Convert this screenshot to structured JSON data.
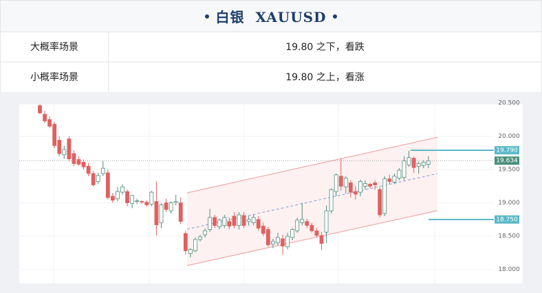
{
  "header": {
    "title": "白银  XAUUSD"
  },
  "table": {
    "rows": [
      [
        "大概率场景",
        "19.80 之下，看跌"
      ],
      [
        "小概率场景",
        "19.80 之上，看涨"
      ]
    ]
  },
  "chart_data": {
    "type": "candlestick",
    "up_color": "#4a8f7c",
    "down_color": "#e06060",
    "ylim": [
      17.79,
      20.48
    ],
    "yticks": [
      {
        "value": 18,
        "label": "18.000"
      },
      {
        "value": 18.5,
        "label": "18.500"
      },
      {
        "value": 19,
        "label": "19.000"
      },
      {
        "value": 19.5,
        "label": "19.500"
      },
      {
        "value": 20,
        "label": "20.000"
      },
      {
        "value": 20.5,
        "label": "20.500"
      }
    ],
    "grid": true,
    "open": [
      20.46,
      20.33,
      20.25,
      20.18,
      19.94,
      19.72,
      19.96,
      19.74,
      19.65,
      19.61,
      19.55,
      19.44,
      19.32,
      19.44,
      19.45,
      19.1,
      19.06,
      19.16,
      19.17,
      18.99,
      19.02,
      19.02,
      19.01,
      18.98,
      19.02,
      18.7,
      19.0,
      18.88,
      19.0,
      19.0,
      18.54,
      18.24,
      18.28,
      18.45,
      18.52,
      18.6,
      18.78,
      18.64,
      18.66,
      18.72,
      18.8,
      18.66,
      18.81,
      18.72,
      18.7,
      18.75,
      18.65,
      18.6,
      18.38,
      18.4,
      18.46,
      18.34,
      18.48,
      18.58,
      18.7,
      18.72,
      18.66,
      18.58,
      18.51,
      18.56,
      18.88,
      19.17,
      19.4,
      19.24,
      19.3,
      19.17,
      19.16,
      19.25,
      19.28,
      19.3,
      19.2,
      18.84,
      19.36,
      19.31,
      19.37,
      19.38,
      19.57,
      19.67,
      19.55,
      19.56,
      19.58
    ],
    "high": [
      20.48,
      20.38,
      20.3,
      20.22,
      20.0,
      19.86,
      20.0,
      19.79,
      19.7,
      19.65,
      19.6,
      19.48,
      19.45,
      19.63,
      19.5,
      19.15,
      19.24,
      19.28,
      19.2,
      19.12,
      19.06,
      19.04,
      19.04,
      19.18,
      19.32,
      19.0,
      19.06,
      19.02,
      19.12,
      19.08,
      18.58,
      18.32,
      18.48,
      18.52,
      18.62,
      18.91,
      18.82,
      18.76,
      18.82,
      18.78,
      18.86,
      18.86,
      18.86,
      18.8,
      18.82,
      18.8,
      18.7,
      18.64,
      18.46,
      18.55,
      18.52,
      18.55,
      18.62,
      18.78,
      19.0,
      18.76,
      18.7,
      18.62,
      18.56,
      18.96,
      19.22,
      19.44,
      19.66,
      19.4,
      19.34,
      19.25,
      19.35,
      19.34,
      19.3,
      19.34,
      19.24,
      19.4,
      19.42,
      19.44,
      19.52,
      19.7,
      19.78,
      19.7,
      19.62,
      19.64,
      19.7
    ],
    "low": [
      20.33,
      20.2,
      20.12,
      19.82,
      19.7,
      19.66,
      19.62,
      19.55,
      19.56,
      19.5,
      19.4,
      19.24,
      19.28,
      19.4,
      19.05,
      19.0,
      19.02,
      19.12,
      18.95,
      18.92,
      18.98,
      18.99,
      18.94,
      18.95,
      18.51,
      18.62,
      18.86,
      18.84,
      18.96,
      18.68,
      18.22,
      18.18,
      18.26,
      18.42,
      18.48,
      18.56,
      18.62,
      18.6,
      18.62,
      18.6,
      18.62,
      18.6,
      18.62,
      18.66,
      18.66,
      18.58,
      18.5,
      18.34,
      18.32,
      18.36,
      18.22,
      18.3,
      18.44,
      18.55,
      18.66,
      18.62,
      18.55,
      18.48,
      18.29,
      18.4,
      18.84,
      19.1,
      19.18,
      19.14,
      19.08,
      19.05,
      19.1,
      19.2,
      19.22,
      19.2,
      18.78,
      18.8,
      19.28,
      19.28,
      19.34,
      19.34,
      19.54,
      19.45,
      19.44,
      19.52,
      19.52
    ],
    "close": [
      20.35,
      20.23,
      20.15,
      19.86,
      19.74,
      19.8,
      19.66,
      19.59,
      19.58,
      19.54,
      19.44,
      19.27,
      19.41,
      19.52,
      19.08,
      19.04,
      19.17,
      19.24,
      19.0,
      19.11,
      19.03,
      19.01,
      18.97,
      19.16,
      18.67,
      18.97,
      18.9,
      19.0,
      19.02,
      18.72,
      18.28,
      18.3,
      18.45,
      18.49,
      18.58,
      18.78,
      18.66,
      18.74,
      18.78,
      18.65,
      18.66,
      18.82,
      18.66,
      18.75,
      18.78,
      18.62,
      18.54,
      18.37,
      18.42,
      18.48,
      18.35,
      18.5,
      18.6,
      18.74,
      18.75,
      18.66,
      18.58,
      18.51,
      18.39,
      18.88,
      19.2,
      19.42,
      19.25,
      19.37,
      19.16,
      19.13,
      19.32,
      19.29,
      19.25,
      19.27,
      18.82,
      19.36,
      19.32,
      19.4,
      19.49,
      19.63,
      19.68,
      19.53,
      19.59,
      19.61,
      19.63
    ],
    "levels": [
      {
        "value": 19.79,
        "label": "19.790",
        "color": "#5ab8c8"
      },
      {
        "value": 18.75,
        "label": "18.750",
        "color": "#5ab8c8"
      }
    ],
    "current": {
      "value": 19.634,
      "label": "19.634",
      "color": "#4a8f7c"
    }
  }
}
